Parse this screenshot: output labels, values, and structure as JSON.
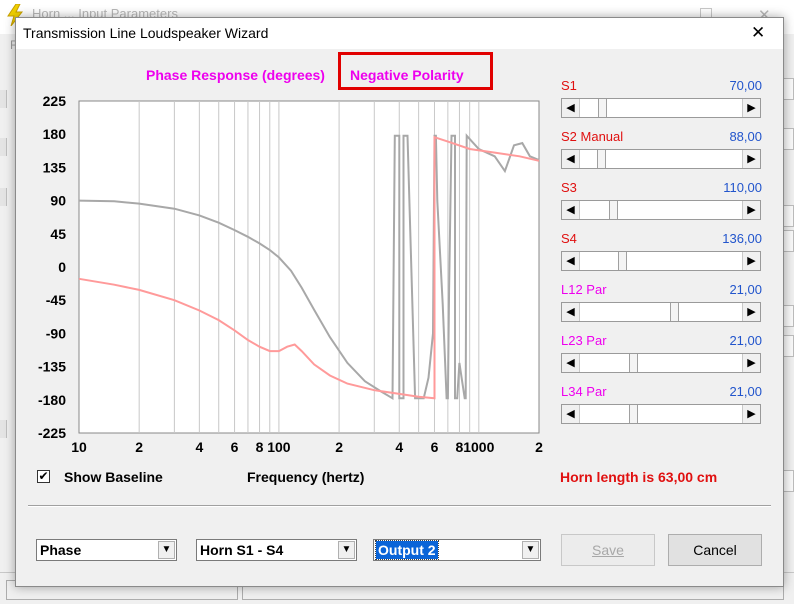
{
  "background_window": {
    "title": "Horn ... Input Parameters",
    "menu": "File"
  },
  "dialog": {
    "title": "Transmission Line Loudspeaker Wizard",
    "chart_heading": "Phase Response (degrees)",
    "polarity_label": "Negative Polarity",
    "highlight_color": "#e10000"
  },
  "sliders": [
    {
      "name": "S1",
      "value": "70,00",
      "name_color": "#e01010",
      "position": 0.12
    },
    {
      "name": "S2  Manual",
      "value": "88,00",
      "name_color": "#e01010",
      "position": 0.11
    },
    {
      "name": "S3",
      "value": "110,00",
      "name_color": "#e01010",
      "position": 0.19
    },
    {
      "name": "S4",
      "value": "136,00",
      "name_color": "#e01010",
      "position": 0.25
    },
    {
      "name": "L12  Par",
      "value": "21,00",
      "name_color": "#ee00ee",
      "position": 0.59
    },
    {
      "name": "L23  Par",
      "value": "21,00",
      "name_color": "#ee00ee",
      "position": 0.32
    },
    {
      "name": "L34  Par",
      "value": "21,00",
      "name_color": "#ee00ee",
      "position": 0.32
    }
  ],
  "controls": {
    "show_baseline_label": "Show Baseline",
    "show_baseline_checked": true,
    "check_mark": "✔",
    "frequency_label": "Frequency (hertz)",
    "horn_length": "Horn length is 63,00 cm",
    "combo_type": "Phase",
    "combo_horn": "Horn S1 - S4",
    "combo_output": "Output 2",
    "save_label": "Save",
    "cancel_label": "Cancel"
  },
  "icons": {
    "dropdown": "▼",
    "arrow_left": "◀",
    "arrow_right": "▶",
    "close": "✕"
  },
  "chart_data": {
    "type": "line",
    "title": "Phase Response (degrees)",
    "xlabel": "Frequency (hertz)",
    "ylabel": "",
    "x_scale": "log",
    "xlim": [
      10,
      2000
    ],
    "ylim": [
      -225,
      225
    ],
    "y_ticks": [
      225,
      180,
      135,
      90,
      45,
      0,
      -45,
      -90,
      -135,
      -180,
      -225
    ],
    "x_ticks": [
      {
        "value": 10,
        "label": "10"
      },
      {
        "value": 20,
        "label": "2"
      },
      {
        "value": 40,
        "label": "4"
      },
      {
        "value": 60,
        "label": "6"
      },
      {
        "value": 80,
        "label": "8"
      },
      {
        "value": 100,
        "label": "100"
      },
      {
        "value": 200,
        "label": "2"
      },
      {
        "value": 400,
        "label": "4"
      },
      {
        "value": 600,
        "label": "6"
      },
      {
        "value": 800,
        "label": "8"
      },
      {
        "value": 1000,
        "label": "1000"
      },
      {
        "value": 2000,
        "label": "2"
      }
    ],
    "grid": true,
    "series": [
      {
        "color": "#a8a8a8",
        "points": [
          [
            10,
            90
          ],
          [
            15,
            89
          ],
          [
            20,
            86
          ],
          [
            30,
            79
          ],
          [
            40,
            70
          ],
          [
            50,
            60
          ],
          [
            60,
            50
          ],
          [
            70,
            41
          ],
          [
            80,
            32
          ],
          [
            90,
            23
          ],
          [
            100,
            13
          ],
          [
            115,
            -5
          ],
          [
            130,
            -28
          ],
          [
            150,
            -58
          ],
          [
            180,
            -95
          ],
          [
            220,
            -130
          ],
          [
            270,
            -155
          ],
          [
            330,
            -170
          ],
          [
            370,
            -178
          ],
          [
            380,
            178
          ],
          [
            400,
            178
          ],
          [
            400,
            -178
          ],
          [
            420,
            -178
          ],
          [
            420,
            178
          ],
          [
            440,
            178
          ],
          [
            480,
            -178
          ],
          [
            530,
            -178
          ],
          [
            560,
            -150
          ],
          [
            590,
            -90
          ],
          [
            600,
            178
          ],
          [
            610,
            178
          ],
          [
            620,
            90
          ],
          [
            660,
            -50
          ],
          [
            690,
            -178
          ],
          [
            700,
            -178
          ],
          [
            710,
            -30
          ],
          [
            730,
            178
          ],
          [
            760,
            178
          ],
          [
            760,
            -178
          ],
          [
            780,
            -178
          ],
          [
            800,
            -130
          ],
          [
            820,
            -150
          ],
          [
            850,
            -178
          ],
          [
            860,
            -178
          ],
          [
            870,
            178
          ],
          [
            1000,
            160
          ],
          [
            1200,
            150
          ],
          [
            1350,
            130
          ],
          [
            1500,
            165
          ],
          [
            1650,
            168
          ],
          [
            1800,
            150
          ],
          [
            2000,
            145
          ]
        ]
      },
      {
        "color": "#ff9a9a",
        "points": [
          [
            10,
            -16
          ],
          [
            15,
            -24
          ],
          [
            20,
            -31
          ],
          [
            30,
            -45
          ],
          [
            40,
            -59
          ],
          [
            50,
            -72
          ],
          [
            60,
            -86
          ],
          [
            70,
            -99
          ],
          [
            80,
            -108
          ],
          [
            90,
            -114
          ],
          [
            100,
            -114
          ],
          [
            110,
            -108
          ],
          [
            120,
            -105
          ],
          [
            130,
            -114
          ],
          [
            150,
            -132
          ],
          [
            180,
            -147
          ],
          [
            220,
            -158
          ],
          [
            300,
            -167
          ],
          [
            400,
            -172
          ],
          [
            500,
            -176
          ],
          [
            600,
            -178
          ],
          [
            600,
            176
          ],
          [
            700,
            170
          ],
          [
            900,
            160
          ],
          [
            1200,
            155
          ],
          [
            1600,
            150
          ],
          [
            2000,
            144
          ]
        ]
      }
    ]
  }
}
